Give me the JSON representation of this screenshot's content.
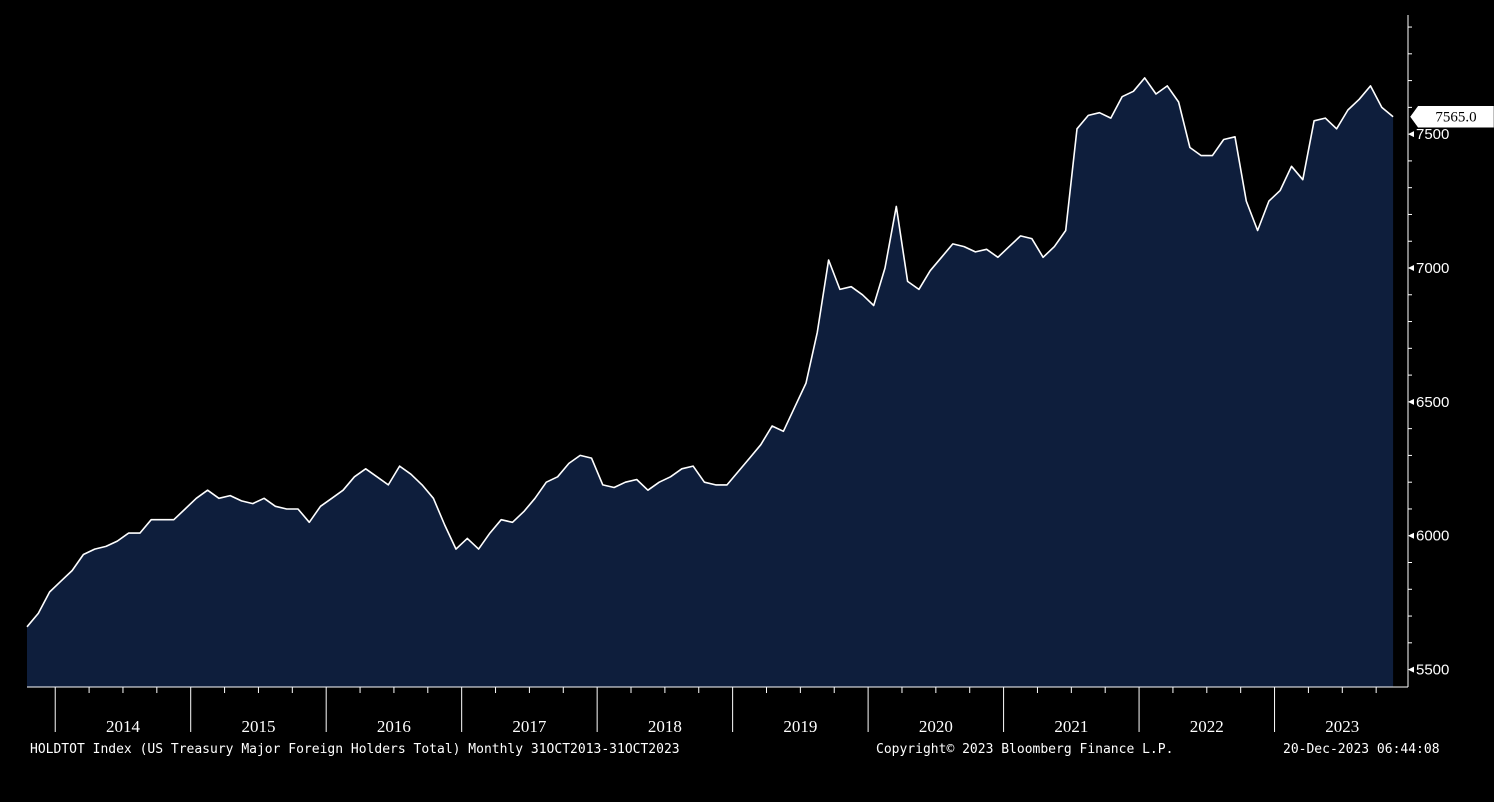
{
  "chart_data": {
    "type": "area",
    "x_start": "2013-10",
    "x_end": "2023-10",
    "frequency": "monthly",
    "values": [
      5660,
      5710,
      5790,
      5830,
      5870,
      5930,
      5950,
      5960,
      5980,
      6010,
      6010,
      6060,
      6060,
      6060,
      6100,
      6140,
      6170,
      6140,
      6150,
      6130,
      6120,
      6140,
      6110,
      6100,
      6100,
      6050,
      6110,
      6140,
      6170,
      6220,
      6250,
      6220,
      6190,
      6260,
      6230,
      6190,
      6140,
      6040,
      5950,
      5990,
      5950,
      6010,
      6060,
      6050,
      6090,
      6140,
      6200,
      6220,
      6270,
      6300,
      6290,
      6190,
      6180,
      6200,
      6210,
      6170,
      6200,
      6220,
      6250,
      6260,
      6200,
      6190,
      6190,
      6240,
      6290,
      6340,
      6410,
      6390,
      6480,
      6570,
      6760,
      7030,
      6920,
      6930,
      6900,
      6860,
      7000,
      7230,
      6950,
      6920,
      6990,
      7040,
      7090,
      7080,
      7060,
      7070,
      7040,
      7080,
      7120,
      7110,
      7040,
      7080,
      7140,
      7520,
      7570,
      7580,
      7560,
      7640,
      7660,
      7710,
      7650,
      7680,
      7620,
      7450,
      7420,
      7420,
      7480,
      7490,
      7250,
      7140,
      7250,
      7290,
      7380,
      7330,
      7550,
      7560,
      7520,
      7590,
      7630,
      7680,
      7600,
      7565
    ],
    "x_tick_labels": [
      "2014",
      "2015",
      "2016",
      "2017",
      "2018",
      "2019",
      "2020",
      "2021",
      "2022",
      "2023"
    ],
    "y_ticks": [
      5500,
      6000,
      6500,
      7000,
      7500
    ],
    "ylim": [
      5435,
      7945
    ],
    "last_value_label": "7565.0",
    "grid": false
  },
  "footer": {
    "title": "HOLDTOT Index (US Treasury Major Foreign Holders Total) Monthly 31OCT2013-31OCT2023",
    "copyright": "Copyright© 2023 Bloomberg Finance L.P.",
    "timestamp": "20-Dec-2023 06:44:08"
  },
  "colors": {
    "background": "#000000",
    "area_fill": "#0e1e3c",
    "line": "#ffffff",
    "axis": "#ffffff"
  }
}
